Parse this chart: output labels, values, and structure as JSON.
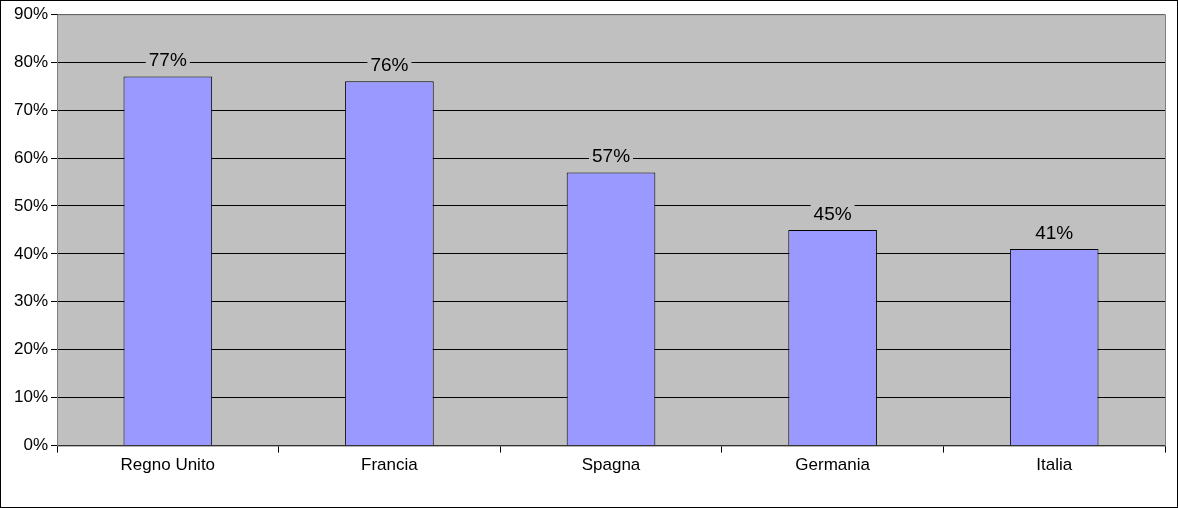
{
  "chart_data": {
    "type": "bar",
    "categories": [
      "Regno Unito",
      "Francia",
      "Spagna",
      "Germania",
      "Italia"
    ],
    "values": [
      77,
      76,
      57,
      45,
      41
    ],
    "value_labels": [
      "77%",
      "76%",
      "57%",
      "45%",
      "41%"
    ],
    "color": "#9999ff",
    "ylim": [
      0,
      90
    ],
    "yticks": [
      {
        "value": 0,
        "label": "0%"
      },
      {
        "value": 10,
        "label": "10%"
      },
      {
        "value": 20,
        "label": "20%"
      },
      {
        "value": 30,
        "label": "30%"
      },
      {
        "value": 40,
        "label": "40%"
      },
      {
        "value": 50,
        "label": "50%"
      },
      {
        "value": 60,
        "label": "60%"
      },
      {
        "value": 70,
        "label": "70%"
      },
      {
        "value": 80,
        "label": "80%"
      },
      {
        "value": 90,
        "label": "90%"
      }
    ],
    "grid": "y",
    "legend": false
  }
}
